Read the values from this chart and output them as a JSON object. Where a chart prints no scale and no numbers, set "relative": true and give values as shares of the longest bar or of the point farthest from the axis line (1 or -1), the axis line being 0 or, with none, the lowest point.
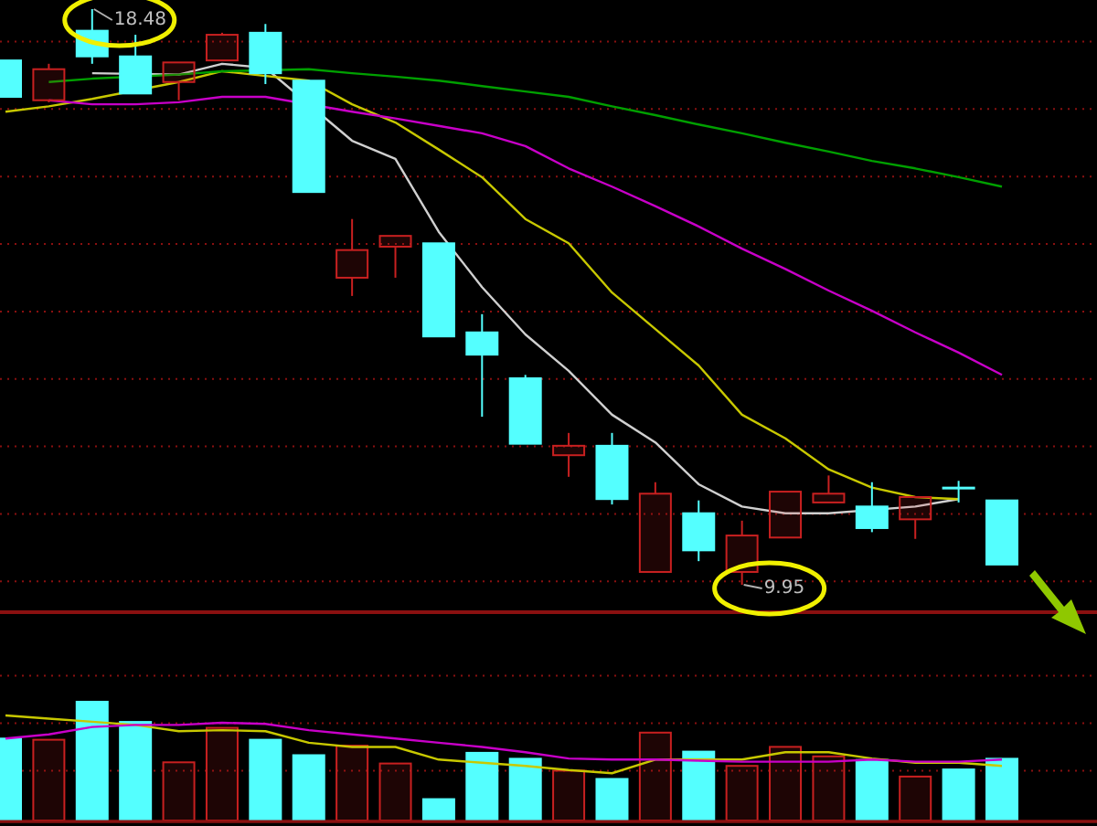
{
  "chart_data": [
    {
      "type": "candlestick",
      "categories": [
        null,
        null,
        null,
        null,
        null,
        null,
        null,
        null,
        null,
        null,
        null,
        null,
        null,
        null,
        null,
        null,
        null,
        null,
        null,
        null,
        null,
        null,
        null,
        null
      ],
      "ohlc": [
        [
          17.72,
          17.72,
          17.18,
          17.18
        ],
        [
          17.13,
          17.67,
          17.1,
          17.59
        ],
        [
          18.16,
          18.48,
          17.67,
          17.78
        ],
        [
          17.78,
          18.1,
          17.23,
          17.23
        ],
        [
          17.4,
          17.69,
          17.13,
          17.69
        ],
        [
          17.72,
          18.13,
          17.72,
          18.1
        ],
        [
          18.13,
          18.26,
          17.37,
          17.53
        ],
        [
          17.42,
          17.42,
          15.77,
          15.77
        ],
        [
          14.5,
          15.37,
          14.23,
          14.91
        ],
        [
          14.96,
          15.12,
          14.5,
          15.12
        ],
        [
          15.01,
          15.01,
          13.63,
          13.63
        ],
        [
          13.69,
          13.96,
          12.44,
          13.36
        ],
        [
          13.01,
          13.06,
          12.04,
          12.04
        ],
        [
          11.87,
          12.2,
          11.55,
          12.01
        ],
        [
          12.01,
          12.2,
          11.14,
          11.22
        ],
        [
          10.14,
          11.47,
          10.14,
          11.3
        ],
        [
          11.01,
          11.2,
          10.3,
          10.46
        ],
        [
          10.14,
          10.9,
          9.95,
          10.68
        ],
        [
          10.65,
          11.33,
          10.65,
          11.33
        ],
        [
          11.17,
          11.57,
          11.17,
          11.3
        ],
        [
          11.11,
          11.47,
          10.73,
          10.79
        ],
        [
          10.92,
          11.25,
          10.63,
          11.25
        ],
        [
          11.39,
          11.49,
          11.17,
          11.39
        ],
        [
          11.2,
          11.2,
          10.25,
          10.25
        ]
      ],
      "colors": [
        "#54ffff",
        "#c82020",
        "#54ffff",
        "#54ffff",
        "#c82020",
        "#c82020",
        "#54ffff",
        "#54ffff",
        "#c82020",
        "#c82020",
        "#54ffff",
        "#54ffff",
        "#54ffff",
        "#c82020",
        "#54ffff",
        "#c82020",
        "#54ffff",
        "#c82020",
        "#c82020",
        "#c82020",
        "#54ffff",
        "#c82020",
        "#54ffff",
        "#54ffff"
      ],
      "series": [
        {
          "type": "line",
          "color": "#d0d0d0",
          "values": [
            null,
            null,
            17.53,
            null,
            17.51,
            17.67,
            17.61,
            null,
            16.53,
            16.26,
            15.18,
            14.36,
            13.66,
            13.12,
            12.47,
            12.06,
            11.44,
            11.11,
            11.01,
            11.01,
            null,
            11.11,
            11.22,
            null
          ]
        },
        {
          "type": "line",
          "color": "#c8c800",
          "values": [
            16.96,
            17.04,
            17.15,
            null,
            17.4,
            17.56,
            null,
            17.42,
            17.07,
            16.8,
            16.4,
            15.99,
            15.37,
            15.01,
            14.28,
            13.74,
            13.2,
            12.47,
            12.12,
            11.66,
            11.39,
            11.25,
            11.22,
            null
          ]
        },
        {
          "type": "line",
          "color": "#c800c8",
          "values": [
            null,
            17.13,
            17.07,
            17.07,
            17.1,
            17.18,
            17.18,
            null,
            16.96,
            16.86,
            16.75,
            16.64,
            16.45,
            16.12,
            15.85,
            15.56,
            15.26,
            14.93,
            14.63,
            14.31,
            14.01,
            13.69,
            13.39,
            13.06
          ]
        },
        {
          "type": "line",
          "color": "#00a000",
          "values": [
            null,
            17.4,
            17.45,
            null,
            17.51,
            17.56,
            null,
            17.59,
            17.53,
            17.48,
            17.42,
            17.34,
            17.26,
            17.18,
            17.04,
            16.91,
            16.77,
            16.64,
            16.5,
            16.37,
            16.23,
            16.12,
            15.99,
            15.85
          ]
        }
      ],
      "annotations": [
        "18.48",
        "9.95"
      ],
      "ref_lines": [
        {
          "axis": "y",
          "value": 18,
          "color": "#8a1010",
          "line_style": "dotted"
        },
        {
          "axis": "y",
          "value": 17,
          "color": "#8a1010",
          "line_style": "dotted"
        },
        {
          "axis": "y",
          "value": 16,
          "color": "#8a1010",
          "line_style": "dotted"
        },
        {
          "axis": "y",
          "value": 15,
          "color": "#8a1010",
          "line_style": "dotted"
        },
        {
          "axis": "y",
          "value": 14,
          "color": "#8a1010",
          "line_style": "dotted"
        },
        {
          "axis": "y",
          "value": 13,
          "color": "#8a1010",
          "line_style": "dotted"
        },
        {
          "axis": "y",
          "value": 12,
          "color": "#8a1010",
          "line_style": "dotted"
        },
        {
          "axis": "y",
          "value": 11,
          "color": "#8a1010",
          "line_style": "dotted"
        },
        {
          "axis": "y",
          "value": 10,
          "color": "#8a1010",
          "line_style": "dotted"
        }
      ]
    },
    {
      "type": "bar",
      "relative": true,
      "ref_lines": [
        {
          "axis": "y",
          "value": 0.42,
          "color": "#8a1010",
          "line_style": "dotted"
        },
        {
          "axis": "y",
          "value": 0.82,
          "color": "#8a1010",
          "line_style": "dotted"
        },
        {
          "axis": "y",
          "value": 1.22,
          "color": "#8a1010",
          "line_style": "dotted"
        }
      ],
      "categories": [
        null,
        null,
        null,
        null,
        null,
        null,
        null,
        null,
        null,
        null,
        null,
        null,
        null,
        null,
        null,
        null,
        null,
        null,
        null,
        null,
        null,
        null,
        null,
        null
      ],
      "values": [
        0.69,
        0.68,
        1,
        0.83,
        0.49,
        0.78,
        0.68,
        0.55,
        0.63,
        0.48,
        0.18,
        0.57,
        0.52,
        0.42,
        0.35,
        0.74,
        0.58,
        0.46,
        0.62,
        0.54,
        0.51,
        0.37,
        0.43,
        0.52
      ],
      "colors": [
        "#54ffff",
        "#c82020",
        "#54ffff",
        "#54ffff",
        "#c82020",
        "#c82020",
        "#54ffff",
        "#54ffff",
        "#c82020",
        "#c82020",
        "#54ffff",
        "#54ffff",
        "#54ffff",
        "#c82020",
        "#54ffff",
        "#c82020",
        "#54ffff",
        "#c82020",
        "#c82020",
        "#c82020",
        "#54ffff",
        "#c82020",
        "#54ffff",
        "#54ffff"
      ]
    },
    {
      "type": "line",
      "relative": true,
      "categories": [
        null,
        null,
        null,
        null,
        null,
        null,
        null,
        null,
        null,
        null,
        null,
        null,
        null,
        null,
        null,
        null,
        null,
        null,
        null,
        null,
        null,
        null,
        null,
        null
      ],
      "series": [
        {
          "color": "#c8c800",
          "values": [
            1,
            0.97,
            0.94,
            0.91,
            0.85,
            0.86,
            0.85,
            0.74,
            0.7,
            0.7,
            0.58,
            0.55,
            0.52,
            0.48,
            0.45,
            0.58,
            0.58,
            0.58,
            0.65,
            0.65,
            0.59,
            0.55,
            0.55,
            0.52
          ]
        },
        {
          "color": "#c800c8",
          "values": [
            0.78,
            0.82,
            0.89,
            0.91,
            0.91,
            0.93,
            0.92,
            0.86,
            0.82,
            0.78,
            0.74,
            0.7,
            0.65,
            0.59,
            0.58,
            0.58,
            0.57,
            0.56,
            0.56,
            0.56,
            0.58,
            0.56,
            0.56,
            0.58
          ]
        }
      ]
    }
  ]
}
